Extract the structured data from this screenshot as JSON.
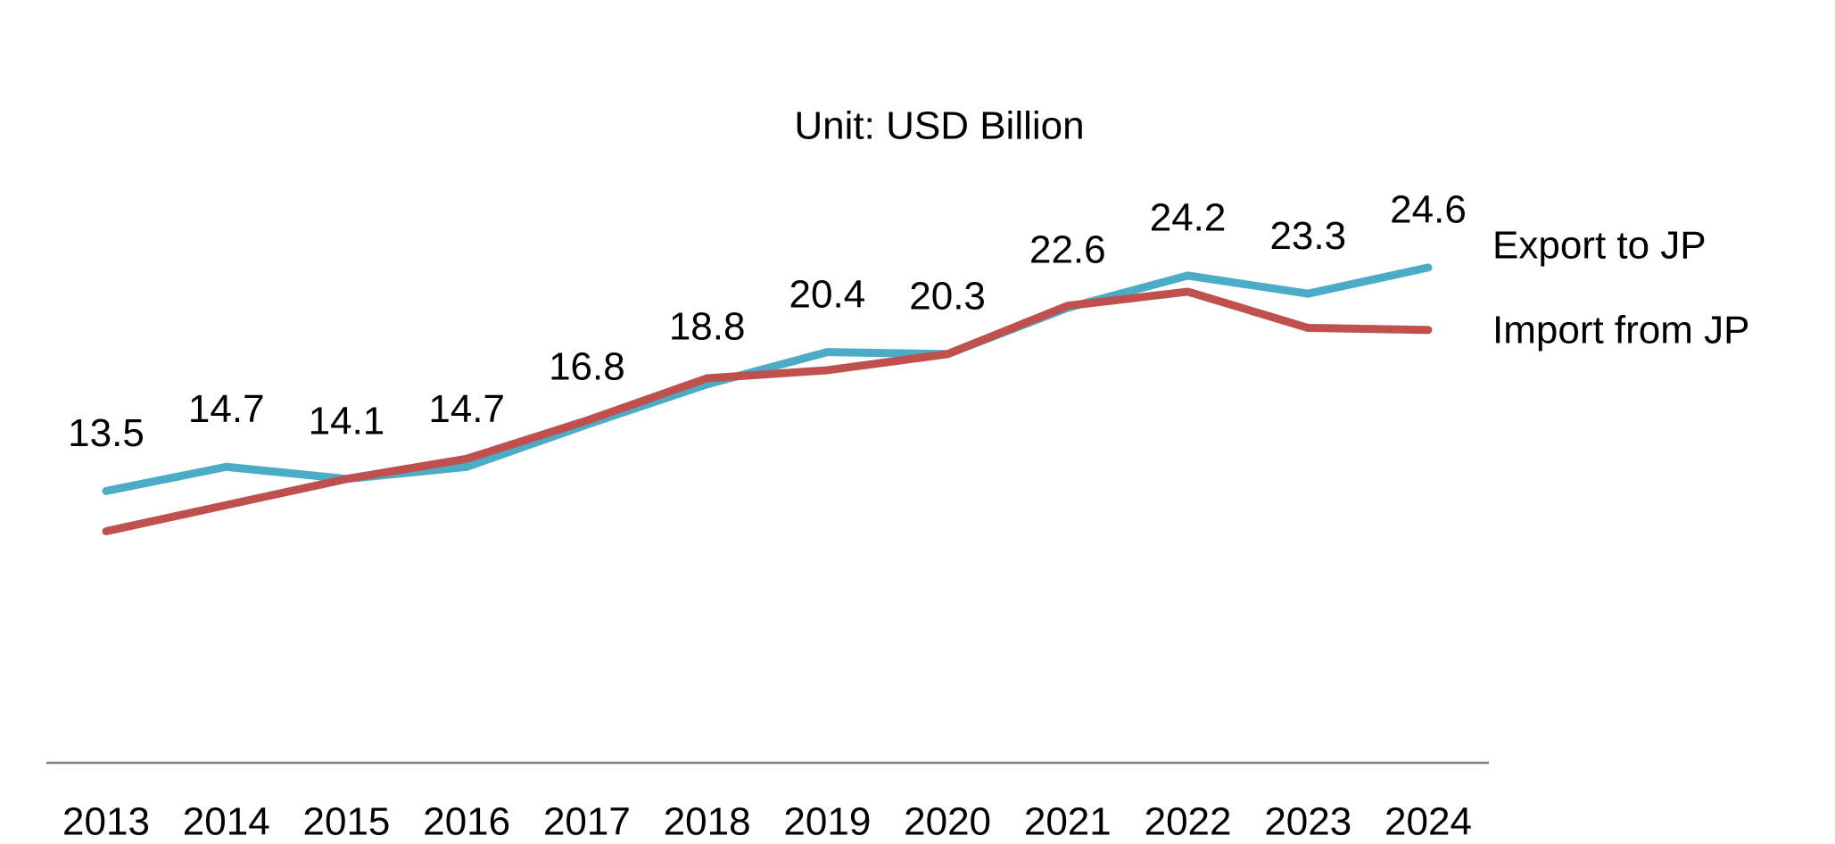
{
  "chart_data": {
    "type": "line",
    "title": "Unit: USD Billion",
    "categories": [
      "2013",
      "2014",
      "2015",
      "2016",
      "2017",
      "2018",
      "2019",
      "2020",
      "2021",
      "2022",
      "2023",
      "2024"
    ],
    "series": [
      {
        "name": "Export to JP",
        "color": "#4bacc6",
        "labeled": true,
        "values": [
          13.5,
          14.7,
          14.1,
          14.7,
          16.8,
          18.8,
          20.4,
          20.3,
          22.6,
          24.2,
          23.3,
          24.6
        ]
      },
      {
        "name": "Import from JP",
        "color": "#c0504d",
        "labeled": false,
        "values": [
          11.5,
          12.8,
          14.1,
          15.1,
          17.0,
          19.1,
          19.5,
          20.3,
          22.7,
          23.4,
          21.6,
          21.5
        ]
      }
    ],
    "ylim": [
      0,
      30
    ],
    "legend": "right"
  }
}
